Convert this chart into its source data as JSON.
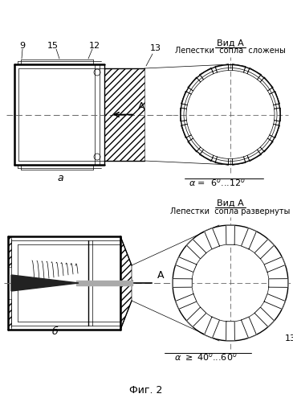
{
  "title": "Фиг. 2",
  "bg_color": "#ffffff",
  "line_color": "#000000",
  "label_a_top": "Вид A",
  "label_text_top": "Лепестки  сопла  сложены",
  "label_a_bot": "Вид A",
  "label_text_bot": "Лепестки  сопла развернуты",
  "label_a": "а",
  "label_b": "б",
  "num_9": "9",
  "num_12": "12",
  "num_13": "13",
  "num_15": "15"
}
